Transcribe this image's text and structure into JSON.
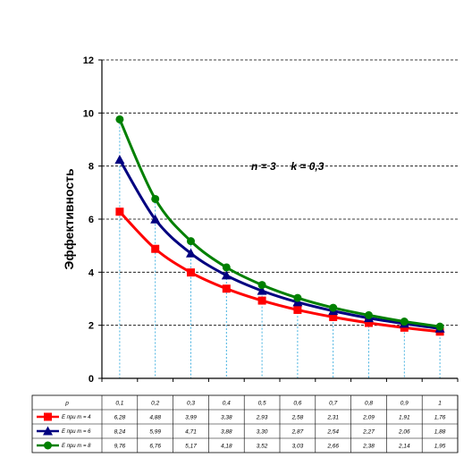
{
  "chart_data": {
    "type": "line",
    "title": "",
    "xlabel": "",
    "ylabel": "Эффективность",
    "ylim": [
      0,
      12
    ],
    "yticks": [
      "0",
      "2",
      "4",
      "6",
      "8",
      "10",
      "12"
    ],
    "grid": "horizontal dashed",
    "annotation": "n = 3     k = 0,3",
    "table": {
      "header_label": "p",
      "columns": [
        "0,1",
        "0,2",
        "0,3",
        "0,4",
        "0,5",
        "0,6",
        "0,7",
        "0,8",
        "0,9",
        "1"
      ]
    },
    "x": [
      0.1,
      0.2,
      0.3,
      0.4,
      0.5,
      0.6,
      0.7,
      0.8,
      0.9,
      1
    ],
    "series": [
      {
        "name": "E при m = 4",
        "color": "#ff0000",
        "marker": "square",
        "values": [
          6.28,
          4.88,
          3.99,
          3.38,
          2.93,
          2.58,
          2.31,
          2.09,
          1.91,
          1.76
        ],
        "labels": [
          "6,28",
          "4,88",
          "3,99",
          "3,38",
          "2,93",
          "2,58",
          "2,31",
          "2,09",
          "1,91",
          "1,76"
        ]
      },
      {
        "name": "E при m = 6",
        "color": "#000080",
        "marker": "triangle",
        "values": [
          8.24,
          5.99,
          4.71,
          3.88,
          3.3,
          2.87,
          2.54,
          2.27,
          2.06,
          1.88
        ],
        "labels": [
          "8,24",
          "5,99",
          "4,71",
          "3,88",
          "3,30",
          "2,87",
          "2,54",
          "2,27",
          "2,06",
          "1,88"
        ]
      },
      {
        "name": "E при m = 8",
        "color": "#008000",
        "marker": "circle",
        "values": [
          9.76,
          6.76,
          5.17,
          4.18,
          3.52,
          3.03,
          2.66,
          2.38,
          2.14,
          1.95
        ],
        "labels": [
          "9,76",
          "6,76",
          "5,17",
          "4,18",
          "3,52",
          "3,03",
          "2,66",
          "2,38",
          "2,14",
          "1,95"
        ]
      }
    ],
    "droplines_color": "#33aadd"
  }
}
